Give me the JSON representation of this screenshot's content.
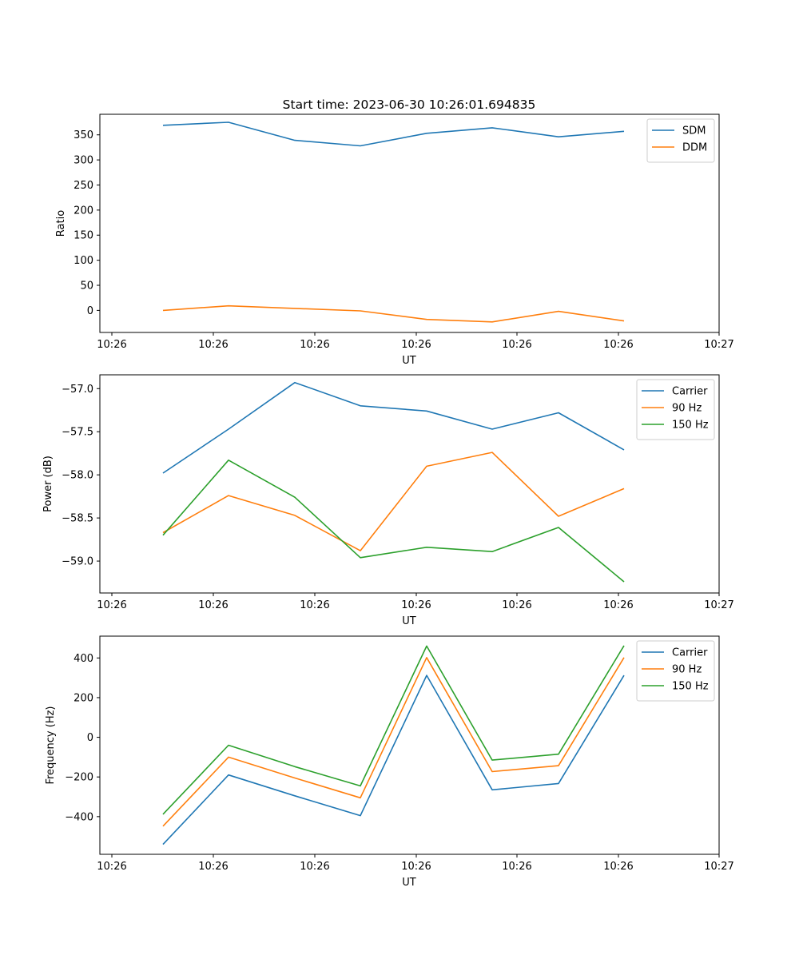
{
  "title": "Start time: 2023-06-30 10:26:01.694835",
  "chart_data": [
    {
      "type": "line",
      "xlabel": "UT",
      "ylabel": "Ratio",
      "xtick_labels": [
        "10:26",
        "10:26",
        "10:26",
        "10:26",
        "10:26",
        "10:26",
        "10:27"
      ],
      "ytick_values": [
        0,
        50,
        100,
        150,
        200,
        250,
        300,
        350
      ],
      "ylim": [
        -44,
        391
      ],
      "series": [
        {
          "name": "SDM",
          "color": "#1f77b4",
          "values": [
            369,
            375,
            339,
            328,
            353,
            364,
            346,
            357
          ]
        },
        {
          "name": "DDM",
          "color": "#ff7f0e",
          "values": [
            0,
            9,
            4,
            -1,
            -18,
            -23,
            -2,
            -21
          ]
        }
      ],
      "legend": "top-right"
    },
    {
      "type": "line",
      "xlabel": "UT",
      "ylabel": "Power (dB)",
      "xtick_labels": [
        "10:26",
        "10:26",
        "10:26",
        "10:26",
        "10:26",
        "10:26",
        "10:27"
      ],
      "ytick_values": [
        -57.0,
        -57.5,
        -58.0,
        -58.5,
        -59.0
      ],
      "ytick_labels": [
        "−57.0",
        "−57.5",
        "−58.0",
        "−58.5",
        "−59.0"
      ],
      "ylim": [
        -59.37,
        -56.84
      ],
      "series": [
        {
          "name": "Carrier",
          "color": "#1f77b4",
          "values": [
            -57.98,
            -57.47,
            -56.93,
            -57.2,
            -57.26,
            -57.47,
            -57.28,
            -57.71
          ]
        },
        {
          "name": "90 Hz",
          "color": "#ff7f0e",
          "values": [
            -58.67,
            -58.24,
            -58.47,
            -58.88,
            -57.9,
            -57.74,
            -58.48,
            -58.16
          ]
        },
        {
          "name": "150 Hz",
          "color": "#2ca02c",
          "values": [
            -58.7,
            -57.83,
            -58.26,
            -58.96,
            -58.84,
            -58.89,
            -58.61,
            -59.24
          ]
        }
      ],
      "legend": "top-right"
    },
    {
      "type": "line",
      "xlabel": "UT",
      "ylabel": "Frequency (Hz)",
      "xtick_labels": [
        "10:26",
        "10:26",
        "10:26",
        "10:26",
        "10:26",
        "10:26",
        "10:27"
      ],
      "ytick_values": [
        400,
        200,
        0,
        -200,
        -400
      ],
      "ytick_labels": [
        "400",
        "200",
        "0",
        "−200",
        "−400"
      ],
      "ylim": [
        -590,
        510
      ],
      "series": [
        {
          "name": "Carrier",
          "color": "#1f77b4",
          "values": [
            -540,
            -190,
            -295,
            -395,
            312,
            -265,
            -233,
            312
          ]
        },
        {
          "name": "90 Hz",
          "color": "#ff7f0e",
          "values": [
            -448,
            -100,
            -205,
            -305,
            402,
            -173,
            -143,
            402
          ]
        },
        {
          "name": "150 Hz",
          "color": "#2ca02c",
          "values": [
            -388,
            -40,
            -148,
            -245,
            460,
            -115,
            -85,
            462
          ]
        }
      ],
      "legend": "top-right"
    }
  ]
}
